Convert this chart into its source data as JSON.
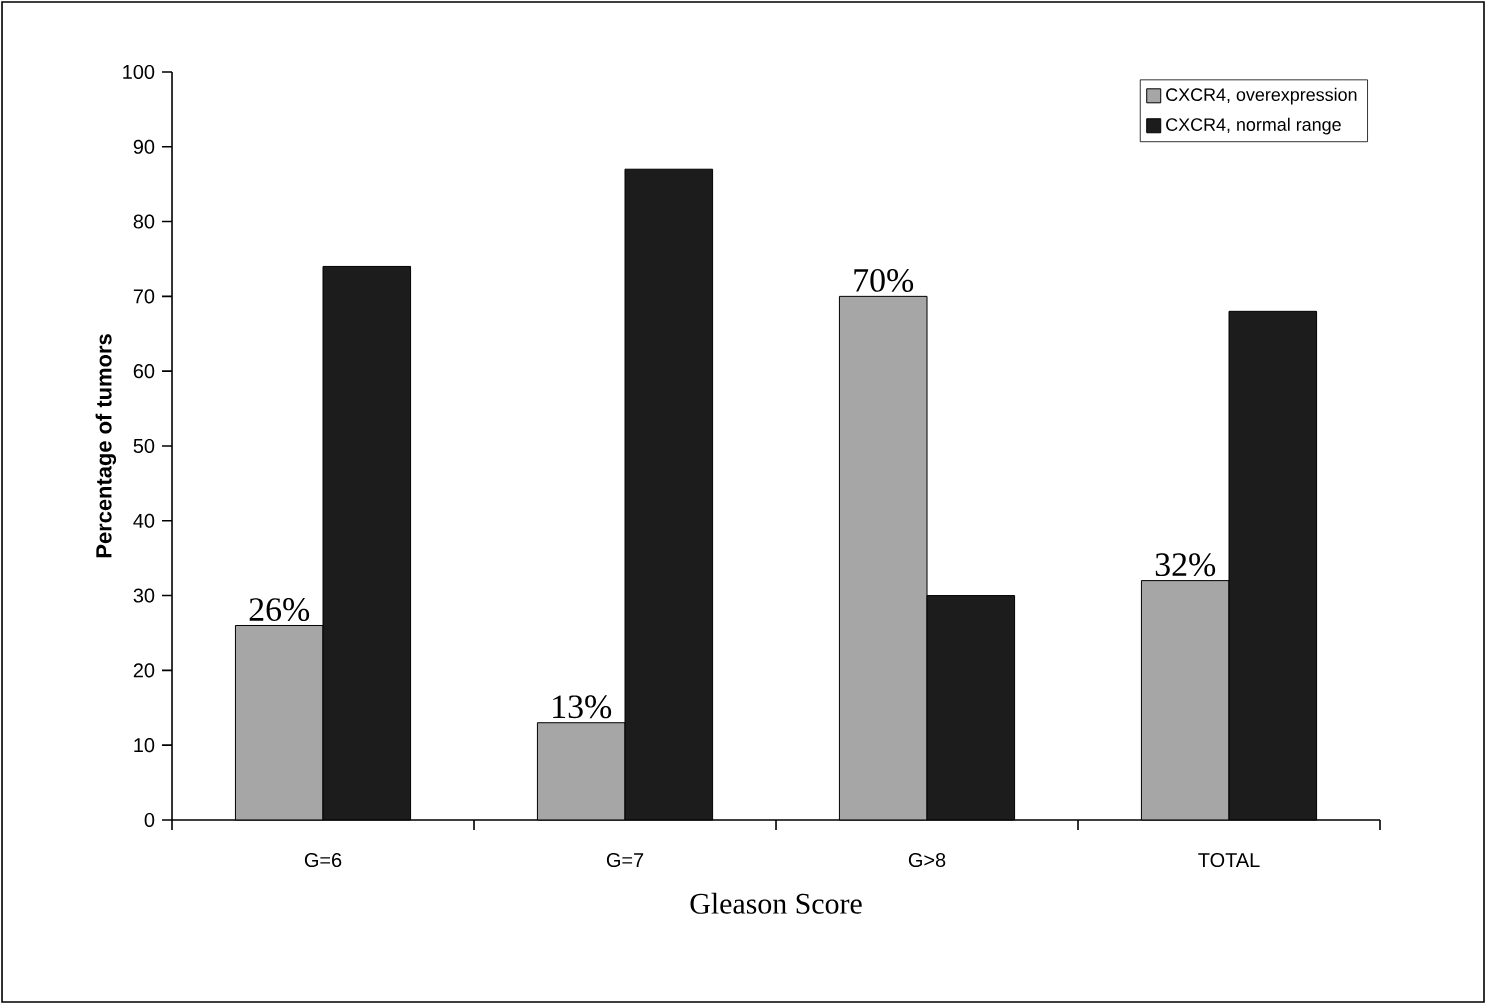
{
  "chart_data": {
    "type": "bar",
    "xlabel": "Gleason Score",
    "ylabel": "Percentage of tumors",
    "categories": [
      "G=6",
      "G=7",
      "G>8",
      "TOTAL"
    ],
    "series": [
      {
        "name": "CXCR4, overexpression",
        "color": "#a6a6a6",
        "values": [
          26,
          13,
          70,
          32
        ],
        "value_labels": [
          "26%",
          "13%",
          "70%",
          "32%"
        ]
      },
      {
        "name": "CXCR4, normal range",
        "color": "#1c1c1c",
        "values": [
          74,
          87,
          30,
          68
        ]
      }
    ],
    "ylim": [
      0,
      100
    ],
    "yticks": [
      0,
      10,
      20,
      30,
      40,
      50,
      60,
      70,
      80,
      90,
      100
    ],
    "grid": false,
    "legend": "top right"
  }
}
